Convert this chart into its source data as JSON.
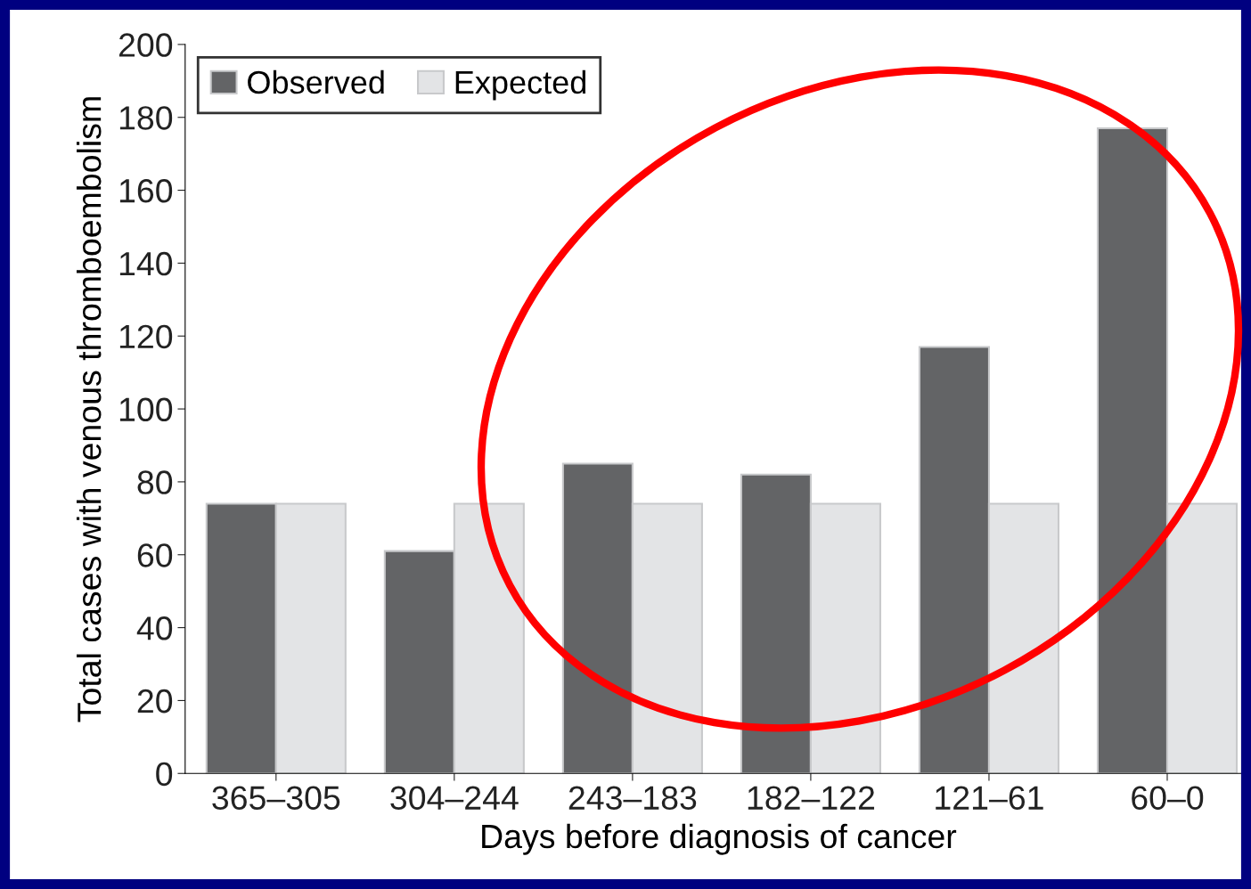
{
  "chart_data": {
    "type": "bar",
    "xlabel": "Days before diagnosis of cancer",
    "ylabel": "Total cases with venous thromboembolism",
    "categories": [
      "365–305",
      "304–244",
      "243–183",
      "182–122",
      "121–61",
      "60–0"
    ],
    "series": [
      {
        "name": "Observed",
        "color": "#636466",
        "values": [
          74,
          61,
          85,
          82,
          117,
          177
        ]
      },
      {
        "name": "Expected",
        "color": "#e3e4e6",
        "values": [
          74,
          74,
          74,
          74,
          74,
          74
        ]
      }
    ],
    "ylim": [
      0,
      200
    ],
    "yticks": [
      0,
      20,
      40,
      60,
      80,
      100,
      120,
      140,
      160,
      180,
      200
    ],
    "grid": false,
    "legend": "top left"
  }
}
